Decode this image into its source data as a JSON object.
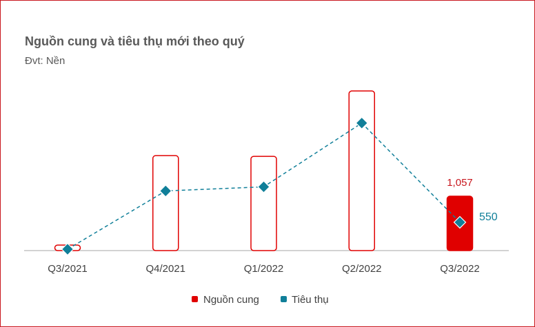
{
  "chart_data": {
    "type": "bar+line",
    "title": "Nguồn cung và tiêu thụ mới theo quý",
    "subtitle": "Đvt: Nền",
    "categories": [
      "Q3/2021",
      "Q4/2021",
      "Q1/2022",
      "Q2/2022",
      "Q3/2022"
    ],
    "series": [
      {
        "name": "Nguồn cung",
        "type": "bar",
        "color": "#e00000",
        "values": [
          107,
          1847,
          1833,
          3104,
          1057
        ],
        "data_labels": [
          null,
          null,
          null,
          null,
          "1,057"
        ]
      },
      {
        "name": "Tiêu thụ",
        "type": "line",
        "color": "#107f99",
        "values": [
          26,
          1160,
          1240,
          2480,
          550
        ],
        "data_labels": [
          null,
          null,
          null,
          null,
          "550"
        ]
      }
    ],
    "ylim": [
      0,
      3200
    ],
    "grid": false,
    "legend": "bottom"
  }
}
